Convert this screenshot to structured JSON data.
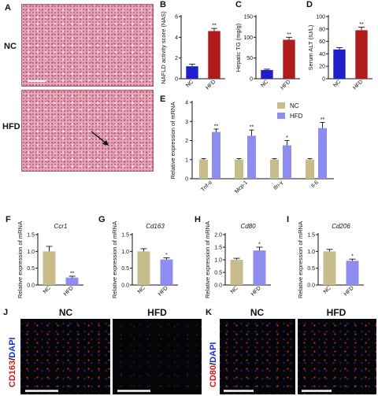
{
  "panels": {
    "A": "A",
    "B": "B",
    "C": "C",
    "D": "D",
    "E": "E",
    "F": "F",
    "G": "G",
    "H": "H",
    "I": "I",
    "J": "J",
    "K": "K"
  },
  "histology": {
    "nc_label": "NC",
    "hfd_label": "HFD"
  },
  "fluorescence": {
    "J": {
      "stain_marker": "CD163",
      "stain_sep": "/",
      "stain_dapi": "DAPI",
      "left_title": "NC",
      "right_title": "HFD"
    },
    "K": {
      "stain_marker": "CD80",
      "stain_sep": "/",
      "stain_dapi": "DAPI",
      "left_title": "NC",
      "right_title": "HFD"
    }
  },
  "colors": {
    "nc_blue": "#1f1fcc",
    "hfd_red": "#b01c1c",
    "nc_tan": "#c8bd8a",
    "hfd_lavender": "#8d8df0"
  },
  "chart_data": [
    {
      "panel": "B",
      "type": "bar",
      "ylabel": "NAFLD activity score (NAS)",
      "categories": [
        "NC",
        "HFD"
      ],
      "values": [
        1.2,
        4.6
      ],
      "errors": [
        0.2,
        0.25
      ],
      "significance": [
        "",
        "**"
      ],
      "ylim": [
        0,
        6
      ],
      "yticks": [
        0,
        2,
        4,
        6
      ],
      "colors": [
        "#1f1fcc",
        "#b01c1c"
      ]
    },
    {
      "panel": "C",
      "type": "bar",
      "ylabel": "Hepatic TG (mg/g)",
      "categories": [
        "NC",
        "HFD"
      ],
      "values": [
        21,
        94
      ],
      "errors": [
        2,
        6
      ],
      "significance": [
        "",
        "**"
      ],
      "ylim": [
        0,
        150
      ],
      "yticks": [
        0,
        50,
        100,
        150
      ],
      "colors": [
        "#1f1fcc",
        "#b01c1c"
      ]
    },
    {
      "panel": "D",
      "type": "bar",
      "ylabel": "Serum ALT (IU/L)",
      "categories": [
        "NC",
        "HFD"
      ],
      "values": [
        47,
        78
      ],
      "errors": [
        3,
        5
      ],
      "significance": [
        "",
        "**"
      ],
      "ylim": [
        0,
        100
      ],
      "yticks": [
        0,
        20,
        40,
        60,
        80,
        100
      ],
      "colors": [
        "#1f1fcc",
        "#b01c1c"
      ]
    },
    {
      "panel": "E",
      "type": "bar",
      "ylabel": "Relative expression of mRNA",
      "categories": [
        "Tnf-α",
        "Mcp-1",
        "Ifn-γ",
        "Il-6"
      ],
      "series": [
        {
          "name": "NC",
          "values": [
            1.0,
            1.0,
            1.0,
            1.0
          ],
          "errors": [
            0.05,
            0.05,
            0.05,
            0.05
          ],
          "color": "#c8bd8a"
        },
        {
          "name": "HFD",
          "values": [
            2.45,
            2.25,
            1.75,
            2.65
          ],
          "errors": [
            0.15,
            0.3,
            0.25,
            0.3
          ],
          "color": "#8d8df0"
        }
      ],
      "significance": [
        "**",
        "**",
        "*",
        "**"
      ],
      "ylim": [
        0,
        4
      ],
      "yticks": [
        0,
        1,
        2,
        3,
        4
      ],
      "legend": "top-right"
    },
    {
      "panel": "F",
      "type": "bar",
      "title": "Ccr1",
      "ylabel": "Relative expression of mRNA",
      "categories": [
        "NC",
        "HFD"
      ],
      "values": [
        1.0,
        0.22
      ],
      "errors": [
        0.15,
        0.04
      ],
      "significance": [
        "",
        "**"
      ],
      "ylim": [
        0,
        1.5
      ],
      "yticks": [
        0.0,
        0.5,
        1.0,
        1.5
      ],
      "colors": [
        "#c8bd8a",
        "#8d8df0"
      ]
    },
    {
      "panel": "G",
      "type": "bar",
      "title": "Cd163",
      "ylabel": "Relative expression of mRNA",
      "categories": [
        "NC",
        "HFD"
      ],
      "values": [
        1.0,
        0.76
      ],
      "errors": [
        0.08,
        0.05
      ],
      "significance": [
        "",
        "*"
      ],
      "ylim": [
        0,
        1.5
      ],
      "yticks": [
        0.0,
        0.5,
        1.0,
        1.5
      ],
      "colors": [
        "#c8bd8a",
        "#8d8df0"
      ]
    },
    {
      "panel": "H",
      "type": "bar",
      "title": "Cd80",
      "ylabel": "Relative expression of mRNA",
      "categories": [
        "NC",
        "HFD"
      ],
      "values": [
        1.0,
        1.37
      ],
      "errors": [
        0.06,
        0.13
      ],
      "significance": [
        "",
        "*"
      ],
      "ylim": [
        0,
        2.0
      ],
      "yticks": [
        0.0,
        0.5,
        1.0,
        1.5,
        2.0
      ],
      "colors": [
        "#c8bd8a",
        "#8d8df0"
      ]
    },
    {
      "panel": "I",
      "type": "bar",
      "title": "Cd206",
      "ylabel": "Relative expression of mRNA",
      "categories": [
        "NC",
        "HFD"
      ],
      "values": [
        1.0,
        0.72
      ],
      "errors": [
        0.06,
        0.05
      ],
      "significance": [
        "",
        "*"
      ],
      "ylim": [
        0,
        1.5
      ],
      "yticks": [
        0.0,
        0.5,
        1.0,
        1.5
      ],
      "colors": [
        "#c8bd8a",
        "#8d8df0"
      ]
    }
  ]
}
